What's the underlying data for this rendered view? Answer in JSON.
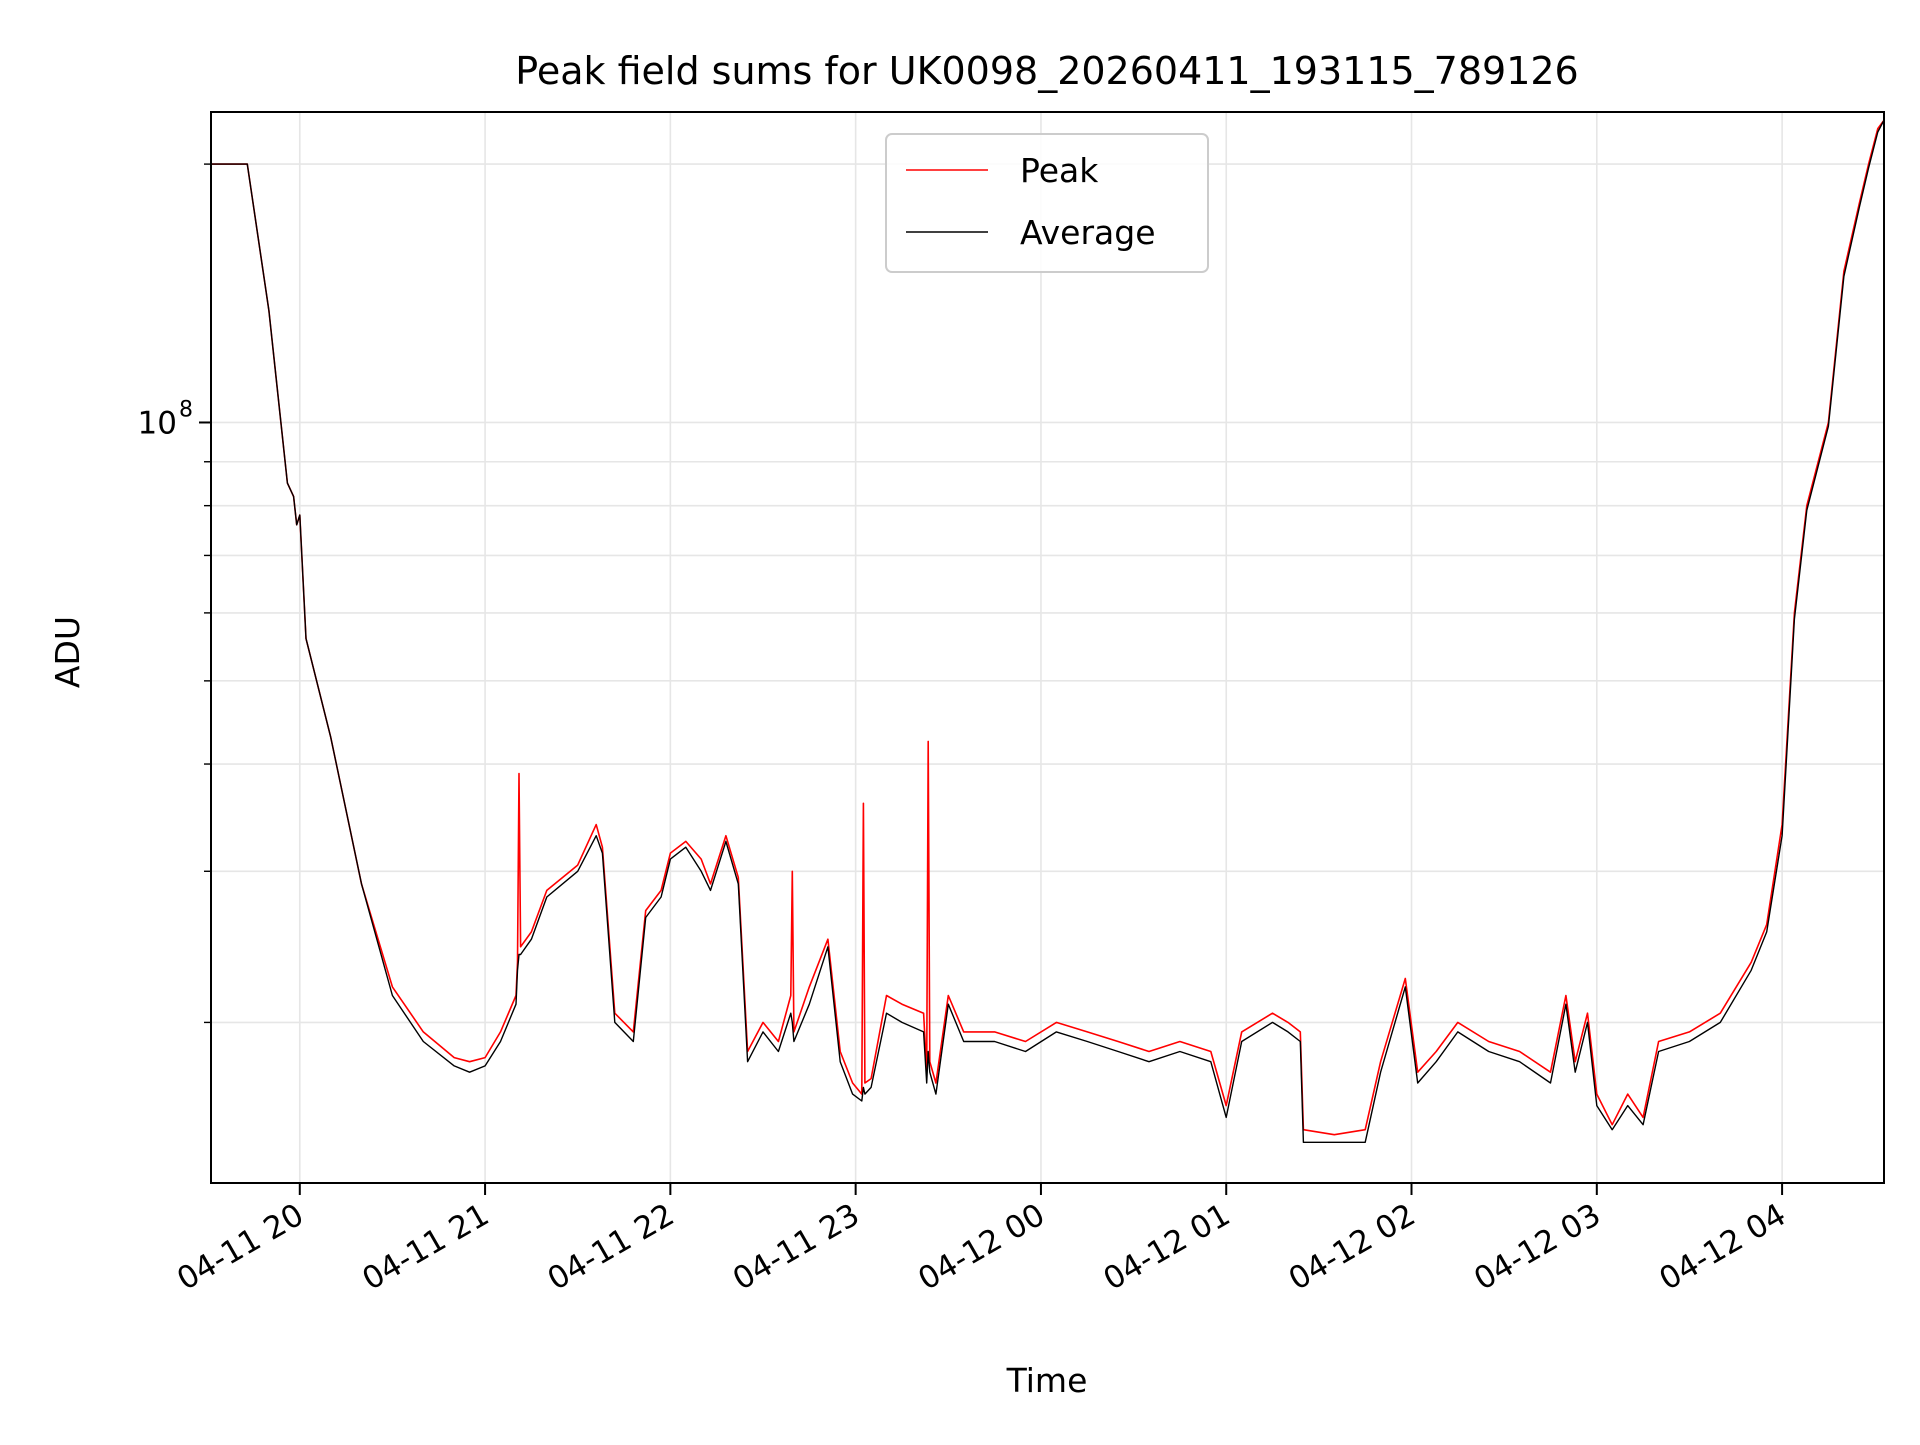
{
  "chart_data": {
    "type": "line",
    "title": "Peak field sums for UK0098_20260411_193115_789126",
    "xlabel": "Time",
    "ylabel": "ADU",
    "yscale": "log",
    "xlim": [
      "2026-04-11T19:31:15",
      "2026-04-12T04:33:00"
    ],
    "ylim": [
      13000000,
      230000000
    ],
    "x_ticks": [
      {
        "t": "2026-04-11T20:00:00",
        "label": "04-11 20"
      },
      {
        "t": "2026-04-11T21:00:00",
        "label": "04-11 21"
      },
      {
        "t": "2026-04-11T22:00:00",
        "label": "04-11 22"
      },
      {
        "t": "2026-04-11T23:00:00",
        "label": "04-11 23"
      },
      {
        "t": "2026-04-12T00:00:00",
        "label": "04-12 00"
      },
      {
        "t": "2026-04-12T01:00:00",
        "label": "04-12 01"
      },
      {
        "t": "2026-04-12T02:00:00",
        "label": "04-12 02"
      },
      {
        "t": "2026-04-12T03:00:00",
        "label": "04-12 03"
      },
      {
        "t": "2026-04-12T04:00:00",
        "label": "04-12 04"
      }
    ],
    "y_major_ticks": [
      {
        "value": 100000000,
        "base": "10",
        "exp": "8"
      }
    ],
    "y_minor_ticks": [
      20000000,
      30000000,
      40000000,
      50000000,
      60000000,
      70000000,
      80000000,
      90000000,
      200000000
    ],
    "grid": true,
    "legend_position": "upper center",
    "series": [
      {
        "name": "Peak",
        "color": "#ff0000",
        "x": [
          "2026-04-11T19:31:15",
          "2026-04-11T19:43:00",
          "2026-04-11T19:50:00",
          "2026-04-11T19:56:00",
          "2026-04-11T19:58:00",
          "2026-04-11T19:59:00",
          "2026-04-11T20:00:00",
          "2026-04-11T20:02:00",
          "2026-04-11T20:10:00",
          "2026-04-11T20:20:00",
          "2026-04-11T20:30:00",
          "2026-04-11T20:40:00",
          "2026-04-11T20:50:00",
          "2026-04-11T20:55:00",
          "2026-04-11T21:00:00",
          "2026-04-11T21:05:00",
          "2026-04-11T21:10:00",
          "2026-04-11T21:10:30",
          "2026-04-11T21:11:00",
          "2026-04-11T21:11:30",
          "2026-04-11T21:15:00",
          "2026-04-11T21:20:00",
          "2026-04-11T21:30:00",
          "2026-04-11T21:36:00",
          "2026-04-11T21:38:00",
          "2026-04-11T21:42:00",
          "2026-04-11T21:48:00",
          "2026-04-11T21:52:00",
          "2026-04-11T21:57:00",
          "2026-04-11T22:00:00",
          "2026-04-11T22:05:00",
          "2026-04-11T22:10:00",
          "2026-04-11T22:13:00",
          "2026-04-11T22:18:00",
          "2026-04-11T22:22:00",
          "2026-04-11T22:25:00",
          "2026-04-11T22:30:00",
          "2026-04-11T22:35:00",
          "2026-04-11T22:39:00",
          "2026-04-11T22:39:30",
          "2026-04-11T22:40:00",
          "2026-04-11T22:45:00",
          "2026-04-11T22:51:00",
          "2026-04-11T22:55:00",
          "2026-04-11T22:59:00",
          "2026-04-11T23:02:00",
          "2026-04-11T23:02:30",
          "2026-04-11T23:03:00",
          "2026-04-11T23:05:00",
          "2026-04-11T23:10:00",
          "2026-04-11T23:15:00",
          "2026-04-11T23:22:00",
          "2026-04-11T23:23:00",
          "2026-04-11T23:23:30",
          "2026-04-11T23:24:00",
          "2026-04-11T23:26:00",
          "2026-04-11T23:30:00",
          "2026-04-11T23:35:00",
          "2026-04-11T23:45:00",
          "2026-04-11T23:55:00",
          "2026-04-12T00:05:00",
          "2026-04-12T00:15:00",
          "2026-04-12T00:25:00",
          "2026-04-12T00:35:00",
          "2026-04-12T00:45:00",
          "2026-04-12T00:55:00",
          "2026-04-12T01:00:00",
          "2026-04-12T01:05:00",
          "2026-04-12T01:15:00",
          "2026-04-12T01:20:00",
          "2026-04-12T01:24:00",
          "2026-04-12T01:25:00",
          "2026-04-12T01:35:00",
          "2026-04-12T01:45:00",
          "2026-04-12T01:50:00",
          "2026-04-12T01:58:00",
          "2026-04-12T02:02:00",
          "2026-04-12T02:08:00",
          "2026-04-12T02:15:00",
          "2026-04-12T02:25:00",
          "2026-04-12T02:35:00",
          "2026-04-12T02:45:00",
          "2026-04-12T02:50:00",
          "2026-04-12T02:53:00",
          "2026-04-12T02:57:00",
          "2026-04-12T03:00:00",
          "2026-04-12T03:05:00",
          "2026-04-12T03:10:00",
          "2026-04-12T03:15:00",
          "2026-04-12T03:20:00",
          "2026-04-12T03:30:00",
          "2026-04-12T03:40:00",
          "2026-04-12T03:50:00",
          "2026-04-12T03:55:00",
          "2026-04-12T04:00:00",
          "2026-04-12T04:04:00",
          "2026-04-12T04:08:00",
          "2026-04-12T04:15:00",
          "2026-04-12T04:20:00",
          "2026-04-12T04:25:00",
          "2026-04-12T04:28:00",
          "2026-04-12T04:31:00",
          "2026-04-12T04:33:00"
        ],
        "y": [
          200000000,
          200000000,
          135000000,
          85000000,
          82000000,
          76000000,
          78000000,
          56000000,
          43000000,
          29000000,
          22000000,
          19500000,
          18200000,
          18000000,
          18200000,
          19500000,
          21500000,
          23500000,
          39000000,
          24500000,
          25500000,
          28500000,
          30500000,
          34000000,
          32000000,
          20500000,
          19500000,
          27000000,
          28500000,
          31500000,
          32500000,
          31000000,
          29000000,
          33000000,
          29500000,
          18500000,
          20000000,
          19000000,
          21500000,
          30000000,
          19500000,
          22000000,
          25000000,
          18500000,
          17000000,
          16500000,
          36000000,
          17000000,
          17200000,
          21500000,
          21000000,
          20500000,
          17500000,
          42500000,
          18000000,
          17000000,
          21500000,
          19500000,
          19500000,
          19000000,
          20000000,
          19500000,
          19000000,
          18500000,
          19000000,
          18500000,
          16000000,
          19500000,
          20500000,
          20000000,
          19500000,
          15000000,
          14800000,
          15000000,
          18000000,
          22500000,
          17500000,
          18500000,
          20000000,
          19000000,
          18500000,
          17500000,
          21500000,
          18000000,
          20500000,
          16500000,
          15200000,
          16500000,
          15500000,
          19000000,
          19500000,
          20500000,
          23500000,
          26000000,
          34000000,
          60000000,
          80000000,
          100000000,
          150000000,
          180000000,
          200000000,
          220000000,
          225000000
        ]
      },
      {
        "name": "Average",
        "color": "#000000",
        "x": [
          "2026-04-11T19:31:15",
          "2026-04-11T19:43:00",
          "2026-04-11T19:50:00",
          "2026-04-11T19:56:00",
          "2026-04-11T19:58:00",
          "2026-04-11T19:59:00",
          "2026-04-11T20:00:00",
          "2026-04-11T20:02:00",
          "2026-04-11T20:10:00",
          "2026-04-11T20:20:00",
          "2026-04-11T20:30:00",
          "2026-04-11T20:40:00",
          "2026-04-11T20:50:00",
          "2026-04-11T20:55:00",
          "2026-04-11T21:00:00",
          "2026-04-11T21:05:00",
          "2026-04-11T21:10:00",
          "2026-04-11T21:10:30",
          "2026-04-11T21:11:00",
          "2026-04-11T21:11:30",
          "2026-04-11T21:15:00",
          "2026-04-11T21:20:00",
          "2026-04-11T21:30:00",
          "2026-04-11T21:36:00",
          "2026-04-11T21:38:00",
          "2026-04-11T21:42:00",
          "2026-04-11T21:48:00",
          "2026-04-11T21:52:00",
          "2026-04-11T21:57:00",
          "2026-04-11T22:00:00",
          "2026-04-11T22:05:00",
          "2026-04-11T22:10:00",
          "2026-04-11T22:13:00",
          "2026-04-11T22:18:00",
          "2026-04-11T22:22:00",
          "2026-04-11T22:25:00",
          "2026-04-11T22:30:00",
          "2026-04-11T22:35:00",
          "2026-04-11T22:39:00",
          "2026-04-11T22:39:30",
          "2026-04-11T22:40:00",
          "2026-04-11T22:45:00",
          "2026-04-11T22:51:00",
          "2026-04-11T22:55:00",
          "2026-04-11T22:59:00",
          "2026-04-11T23:02:00",
          "2026-04-11T23:02:30",
          "2026-04-11T23:03:00",
          "2026-04-11T23:05:00",
          "2026-04-11T23:10:00",
          "2026-04-11T23:15:00",
          "2026-04-11T23:22:00",
          "2026-04-11T23:23:00",
          "2026-04-11T23:23:30",
          "2026-04-11T23:24:00",
          "2026-04-11T23:26:00",
          "2026-04-11T23:30:00",
          "2026-04-11T23:35:00",
          "2026-04-11T23:45:00",
          "2026-04-11T23:55:00",
          "2026-04-12T00:05:00",
          "2026-04-12T00:15:00",
          "2026-04-12T00:25:00",
          "2026-04-12T00:35:00",
          "2026-04-12T00:45:00",
          "2026-04-12T00:55:00",
          "2026-04-12T01:00:00",
          "2026-04-12T01:05:00",
          "2026-04-12T01:15:00",
          "2026-04-12T01:20:00",
          "2026-04-12T01:24:00",
          "2026-04-12T01:25:00",
          "2026-04-12T01:35:00",
          "2026-04-12T01:45:00",
          "2026-04-12T01:50:00",
          "2026-04-12T01:58:00",
          "2026-04-12T02:02:00",
          "2026-04-12T02:08:00",
          "2026-04-12T02:15:00",
          "2026-04-12T02:25:00",
          "2026-04-12T02:35:00",
          "2026-04-12T02:45:00",
          "2026-04-12T02:50:00",
          "2026-04-12T02:53:00",
          "2026-04-12T02:57:00",
          "2026-04-12T03:00:00",
          "2026-04-12T03:05:00",
          "2026-04-12T03:10:00",
          "2026-04-12T03:15:00",
          "2026-04-12T03:20:00",
          "2026-04-12T03:30:00",
          "2026-04-12T03:40:00",
          "2026-04-12T03:50:00",
          "2026-04-12T03:55:00",
          "2026-04-12T04:00:00",
          "2026-04-12T04:04:00",
          "2026-04-12T04:08:00",
          "2026-04-12T04:15:00",
          "2026-04-12T04:20:00",
          "2026-04-12T04:25:00",
          "2026-04-12T04:28:00",
          "2026-04-12T04:31:00",
          "2026-04-12T04:33:00"
        ],
        "y": [
          200000000,
          200000000,
          135000000,
          85000000,
          82000000,
          76000000,
          78000000,
          56000000,
          43000000,
          29000000,
          21500000,
          19000000,
          17800000,
          17500000,
          17800000,
          19000000,
          21000000,
          23000000,
          24000000,
          24000000,
          25000000,
          28000000,
          30000000,
          33000000,
          31500000,
          20000000,
          19000000,
          26500000,
          28000000,
          31000000,
          32000000,
          30000000,
          28500000,
          32500000,
          29000000,
          18000000,
          19500000,
          18500000,
          20500000,
          20000000,
          19000000,
          21000000,
          24500000,
          18000000,
          16500000,
          16200000,
          16800000,
          16500000,
          16800000,
          20500000,
          20000000,
          19500000,
          17000000,
          18500000,
          17500000,
          16500000,
          21000000,
          19000000,
          19000000,
          18500000,
          19500000,
          19000000,
          18500000,
          18000000,
          18500000,
          18000000,
          15500000,
          19000000,
          20000000,
          19500000,
          19000000,
          14500000,
          14500000,
          14500000,
          17500000,
          22000000,
          17000000,
          18000000,
          19500000,
          18500000,
          18000000,
          17000000,
          21000000,
          17500000,
          20000000,
          16000000,
          15000000,
          16000000,
          15200000,
          18500000,
          19000000,
          20000000,
          23000000,
          25500000,
          33000000,
          59000000,
          79000000,
          99000000,
          148000000,
          178000000,
          198000000,
          218000000,
          225000000
        ]
      }
    ]
  }
}
